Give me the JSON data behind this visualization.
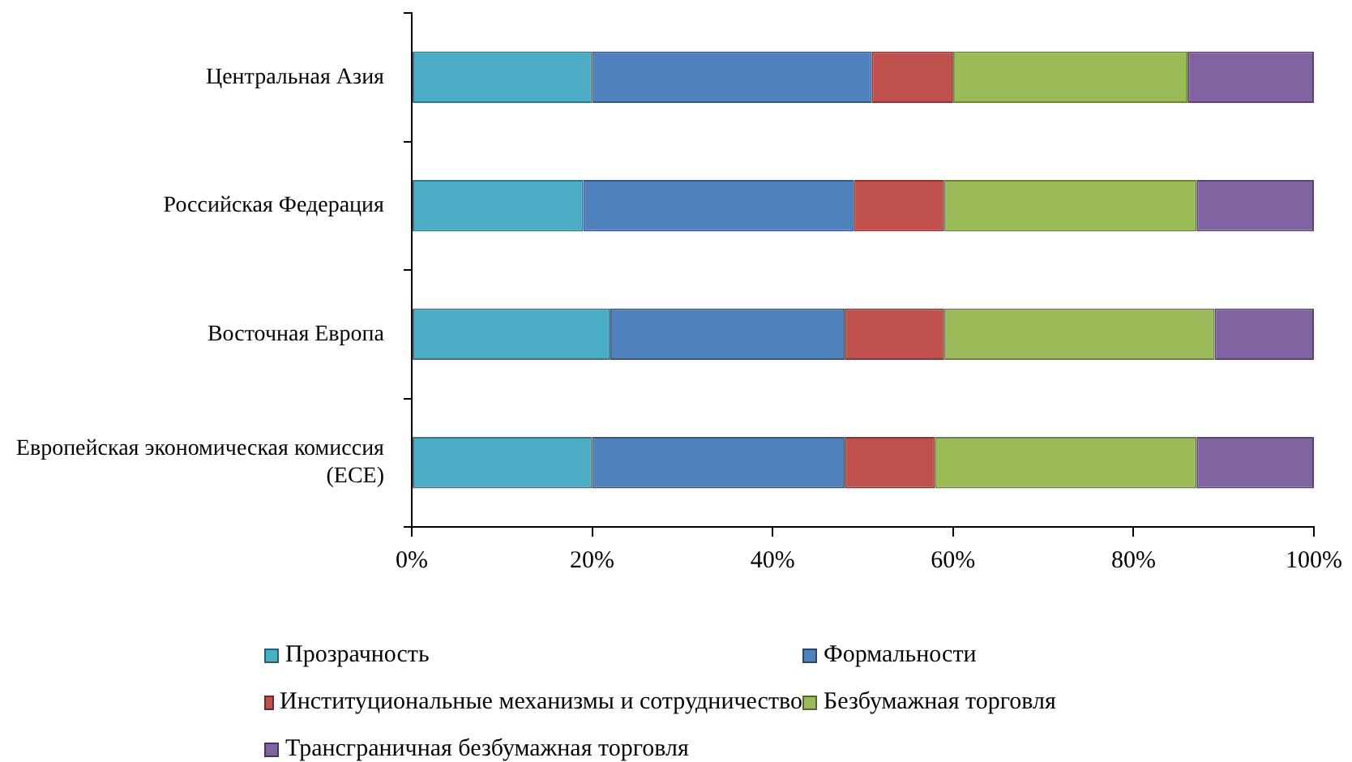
{
  "chart_data": {
    "type": "bar",
    "orientation": "horizontal",
    "stacked": true,
    "categories": [
      "Центральная Азия",
      "Российская Федерация",
      "Восточная Европа",
      "Европейская экономическая комиссия (ECE)"
    ],
    "series": [
      {
        "name": "Прозрачность",
        "color": "#4bacc6",
        "values": [
          20,
          19,
          22,
          20
        ]
      },
      {
        "name": "Формальности",
        "color": "#4f81bd",
        "values": [
          31,
          30,
          26,
          28
        ]
      },
      {
        "name": "Институциональные механизмы и сотрудничество",
        "color": "#c0504d",
        "values": [
          9,
          10,
          11,
          10
        ]
      },
      {
        "name": "Безбумажная торговля",
        "color": "#9bbb59",
        "values": [
          26,
          28,
          30,
          29
        ]
      },
      {
        "name": "Трансграничная безбумажная торговля",
        "color": "#8064a2",
        "values": [
          14,
          13,
          11,
          13
        ]
      }
    ],
    "xlim": [
      0,
      100
    ],
    "xticks": [
      {
        "value": 0,
        "label": "0%"
      },
      {
        "value": 20,
        "label": "20%"
      },
      {
        "value": 40,
        "label": "40%"
      },
      {
        "value": 60,
        "label": "60%"
      },
      {
        "value": 80,
        "label": "80%"
      },
      {
        "value": 100,
        "label": "100%"
      }
    ],
    "legend": "bottom"
  }
}
